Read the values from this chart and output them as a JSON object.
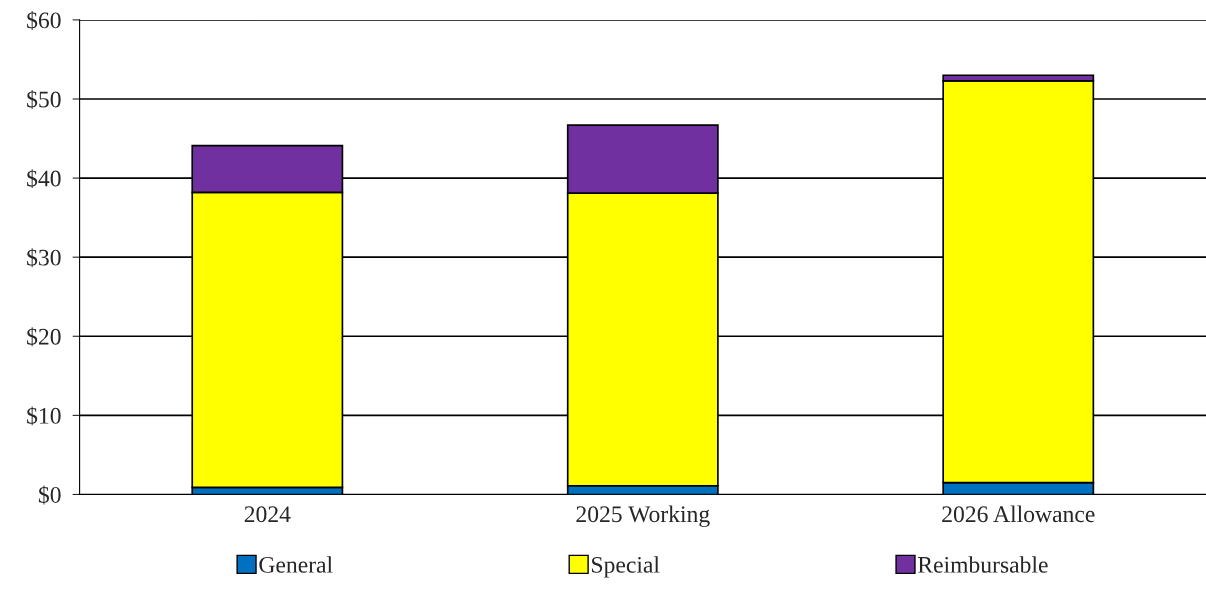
{
  "chart_data": {
    "type": "bar",
    "stacked": true,
    "categories": [
      "2024",
      "2025 Working",
      "2026 Allowance"
    ],
    "series": [
      {
        "name": "General",
        "color": "#0070c0",
        "values": [
          0.9,
          1.1,
          1.5
        ]
      },
      {
        "name": "Special",
        "color": "#ffff00",
        "values": [
          37.3,
          37.0,
          50.8
        ]
      },
      {
        "name": "Reimbursable",
        "color": "#7030a0",
        "values": [
          5.9,
          8.6,
          0.7
        ]
      }
    ],
    "ylim": [
      0,
      60
    ],
    "yticks": [
      {
        "value": 0,
        "label": "$0"
      },
      {
        "value": 10,
        "label": "$10"
      },
      {
        "value": 20,
        "label": "$20"
      },
      {
        "value": 30,
        "label": "$30"
      },
      {
        "value": 40,
        "label": "$40"
      },
      {
        "value": 50,
        "label": "$50"
      },
      {
        "value": 60,
        "label": "$60"
      }
    ],
    "grid": "y",
    "legend": "bottom"
  }
}
